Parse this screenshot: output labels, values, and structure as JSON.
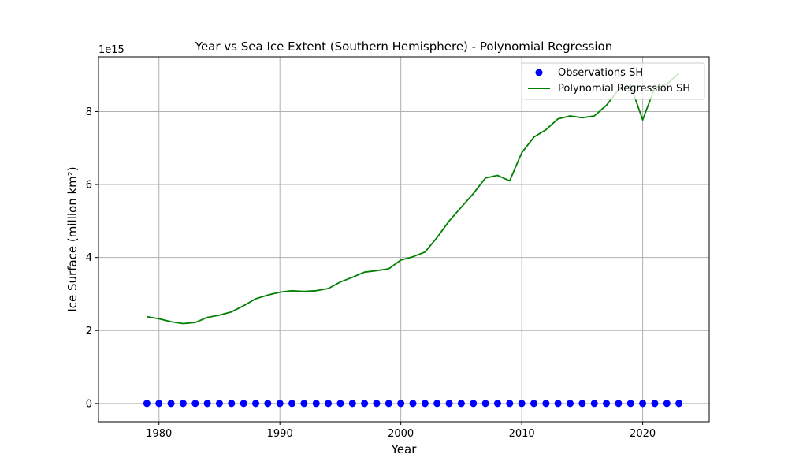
{
  "chart_data": {
    "type": "line",
    "title": "Year vs Sea Ice Extent (Southern Hemisphere) - Polynomial Regression",
    "xlabel": "Year",
    "ylabel": "Ice Surface (million km²)",
    "y_offset_text": "1e15",
    "xlim": [
      1975,
      2025.5
    ],
    "ylim": [
      -0.5,
      9.5
    ],
    "y_scale_multiplier": "1e15",
    "x_ticks": [
      1980,
      1990,
      2000,
      2010,
      2020
    ],
    "y_ticks": [
      0,
      2,
      4,
      6,
      8
    ],
    "x_tick_labels": [
      "1980",
      "1990",
      "2000",
      "2010",
      "2020"
    ],
    "y_tick_labels": [
      "0",
      "2",
      "4",
      "6",
      "8"
    ],
    "grid": true,
    "legend_position": "top-right",
    "series": [
      {
        "name": "Observations SH",
        "kind": "scatter",
        "color": "#0000ff",
        "x": [
          1979,
          1980,
          1981,
          1982,
          1983,
          1984,
          1985,
          1986,
          1987,
          1988,
          1989,
          1990,
          1991,
          1992,
          1993,
          1994,
          1995,
          1996,
          1997,
          1998,
          1999,
          2000,
          2001,
          2002,
          2003,
          2004,
          2005,
          2006,
          2007,
          2008,
          2009,
          2010,
          2011,
          2012,
          2013,
          2014,
          2015,
          2016,
          2017,
          2018,
          2019,
          2020,
          2021,
          2022,
          2023
        ],
        "y": [
          0,
          0,
          0,
          0,
          0,
          0,
          0,
          0,
          0,
          0,
          0,
          0,
          0,
          0,
          0,
          0,
          0,
          0,
          0,
          0,
          0,
          0,
          0,
          0,
          0,
          0,
          0,
          0,
          0,
          0,
          0,
          0,
          0,
          0,
          0,
          0,
          0,
          0,
          0,
          0,
          0,
          0,
          0,
          0,
          0
        ]
      },
      {
        "name": "Polynomial Regression SH",
        "kind": "line",
        "color": "#008000",
        "x": [
          1979,
          1980,
          1981,
          1982,
          1983,
          1984,
          1985,
          1986,
          1987,
          1988,
          1989,
          1990,
          1991,
          1992,
          1993,
          1994,
          1995,
          1996,
          1997,
          1998,
          1999,
          2000,
          2001,
          2002,
          2003,
          2004,
          2005,
          2006,
          2007,
          2008,
          2009,
          2010,
          2011,
          2012,
          2013,
          2014,
          2015,
          2016,
          2017,
          2018,
          2019,
          2020,
          2021,
          2022,
          2023
        ],
        "y": [
          2.38,
          2.32,
          2.24,
          2.19,
          2.22,
          2.36,
          2.42,
          2.51,
          2.68,
          2.87,
          2.97,
          3.05,
          3.09,
          3.07,
          3.09,
          3.15,
          3.33,
          3.46,
          3.6,
          3.64,
          3.69,
          3.93,
          4.02,
          4.15,
          4.55,
          5.0,
          5.38,
          5.75,
          6.18,
          6.25,
          6.1,
          6.87,
          7.3,
          7.5,
          7.8,
          7.88,
          7.83,
          7.88,
          8.17,
          8.6,
          8.72,
          7.77,
          8.65,
          8.75,
          9.05
        ]
      }
    ]
  }
}
